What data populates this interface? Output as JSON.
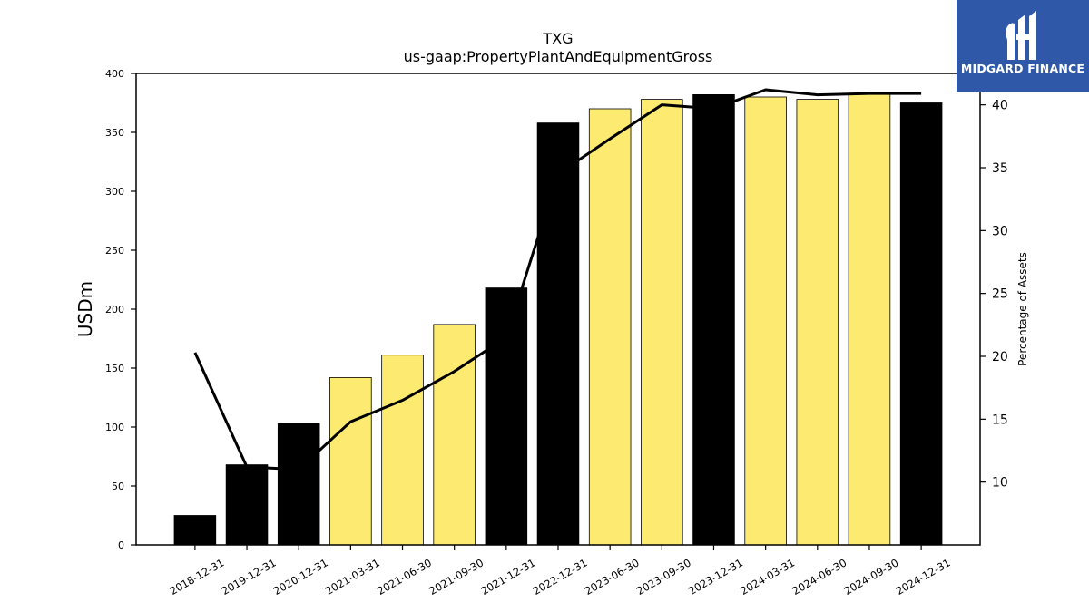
{
  "chart_data": {
    "type": "bar",
    "title": "TXG",
    "subtitle": "us-gaap:PropertyPlantAndEquipmentGross",
    "ylabel": "USDm",
    "y2label": "Percentage of Assets",
    "ylim": [
      0,
      400
    ],
    "y2lim": [
      5.0,
      42.5
    ],
    "yticks": [
      0,
      50,
      100,
      150,
      200,
      250,
      300,
      350,
      400
    ],
    "y2ticks": [
      10,
      15,
      20,
      25,
      30,
      35,
      40
    ],
    "categories": [
      "2018-12-31",
      "2019-12-31",
      "2020-12-31",
      "2021-03-31",
      "2021-06-30",
      "2021-09-30",
      "2021-12-31",
      "2022-12-31",
      "2023-06-30",
      "2023-09-30",
      "2023-12-31",
      "2024-03-31",
      "2024-06-30",
      "2024-09-30",
      "2024-12-31"
    ],
    "bar_values": [
      25,
      68,
      103,
      142,
      161,
      187,
      218,
      358,
      370,
      378,
      382,
      380,
      378,
      383,
      375
    ],
    "bar_colors": [
      "#000000",
      "#000000",
      "#000000",
      "#fdeb71",
      "#fdeb71",
      "#fdeb71",
      "#000000",
      "#000000",
      "#fdeb71",
      "#fdeb71",
      "#000000",
      "#fdeb71",
      "#fdeb71",
      "#fdeb71",
      "#000000"
    ],
    "line_values": [
      20.3,
      11.2,
      11.0,
      14.8,
      16.5,
      18.8,
      21.5,
      34.5,
      37.3,
      40.0,
      39.7,
      41.2,
      40.8,
      40.9,
      40.9
    ],
    "line_color": "#000000"
  },
  "logo": {
    "text": "MIDGARD FINANCE",
    "background": "#2f59a8"
  }
}
